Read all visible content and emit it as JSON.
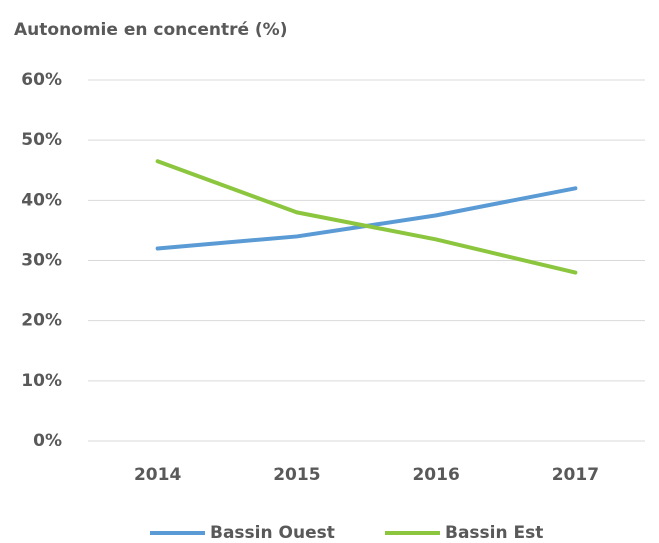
{
  "chart_data": {
    "type": "line",
    "title": "Autonomie en concentré (%)",
    "categories": [
      "2014",
      "2015",
      "2016",
      "2017"
    ],
    "series": [
      {
        "name": "Bassin Ouest",
        "color": "#5b9bd5",
        "values": [
          32,
          34,
          37.5,
          42
        ]
      },
      {
        "name": "Bassin Est",
        "color": "#8cc63f",
        "values": [
          46.5,
          38,
          33.5,
          28
        ]
      }
    ],
    "ylim": [
      0,
      60
    ],
    "yticks": [
      {
        "value": 0,
        "label": "0%"
      },
      {
        "value": 10,
        "label": "10%"
      },
      {
        "value": 20,
        "label": "20%"
      },
      {
        "value": 30,
        "label": "30%"
      },
      {
        "value": 40,
        "label": "40%"
      },
      {
        "value": 50,
        "label": "50%"
      },
      {
        "value": 60,
        "label": "60%"
      }
    ],
    "grid": true,
    "legend": "bottom"
  }
}
